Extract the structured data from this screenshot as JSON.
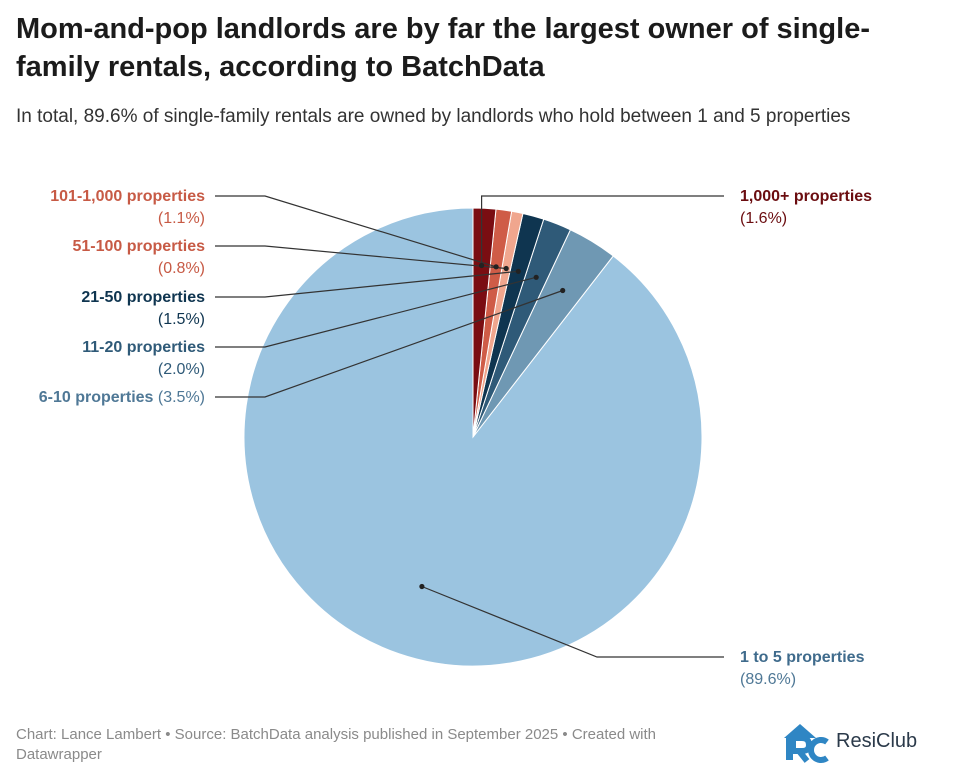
{
  "header": {
    "title": "Mom-and-pop landlords are by far the largest owner of single-family rentals, according to BatchData",
    "subtitle": "In total, 89.6% of single-family rentals are owned by landlords who hold between 1 and 5 properties"
  },
  "chart_data": {
    "type": "pie",
    "title": "Mom-and-pop landlords are by far the largest owner of single-family rentals, according to BatchData",
    "start_angle_deg": 0,
    "direction": "counterclockwise",
    "slices": [
      {
        "label": "1 to 5 properties",
        "value": 89.6,
        "value_label": "(89.6%)",
        "color": "#9bc4e0",
        "label_color": "#3f6b8c",
        "value_color": "#4f7896"
      },
      {
        "label": "6-10 properties",
        "value": 3.5,
        "value_label": "(3.5%)",
        "color": "#6f98b3",
        "label_color": "#4f7896",
        "value_color": "#4f7896"
      },
      {
        "label": "11-20 properties",
        "value": 2.0,
        "value_label": "(2.0%)",
        "color": "#2f5a78",
        "label_color": "#2f5a78",
        "value_color": "#2f5a78"
      },
      {
        "label": "21-50 properties",
        "value": 1.5,
        "value_label": "(1.5%)",
        "color": "#0f3550",
        "label_color": "#0f3550",
        "value_color": "#0f3550"
      },
      {
        "label": "51-100 properties",
        "value": 0.8,
        "value_label": "(0.8%)",
        "color": "#f0a68e",
        "label_color": "#c75a45",
        "value_color": "#c75a45"
      },
      {
        "label": "101-1,000 properties",
        "value": 1.1,
        "value_label": "(1.1%)",
        "color": "#cf5c47",
        "label_color": "#c75a45",
        "value_color": "#c75a45"
      },
      {
        "label": "1,000+ properties",
        "value": 1.6,
        "value_label": "(1.6%)",
        "color": "#7a0d12",
        "label_color": "#6b0d10",
        "value_color": "#6b0d10"
      }
    ]
  },
  "footer": {
    "credit": "Chart: Lance Lambert • Source: BatchData analysis published in September 2025 • Created with Datawrapper"
  },
  "brand": {
    "name": "ResiClub",
    "logo_icon": "resiclub-logo-icon",
    "logo_color": "#2f86c4"
  }
}
